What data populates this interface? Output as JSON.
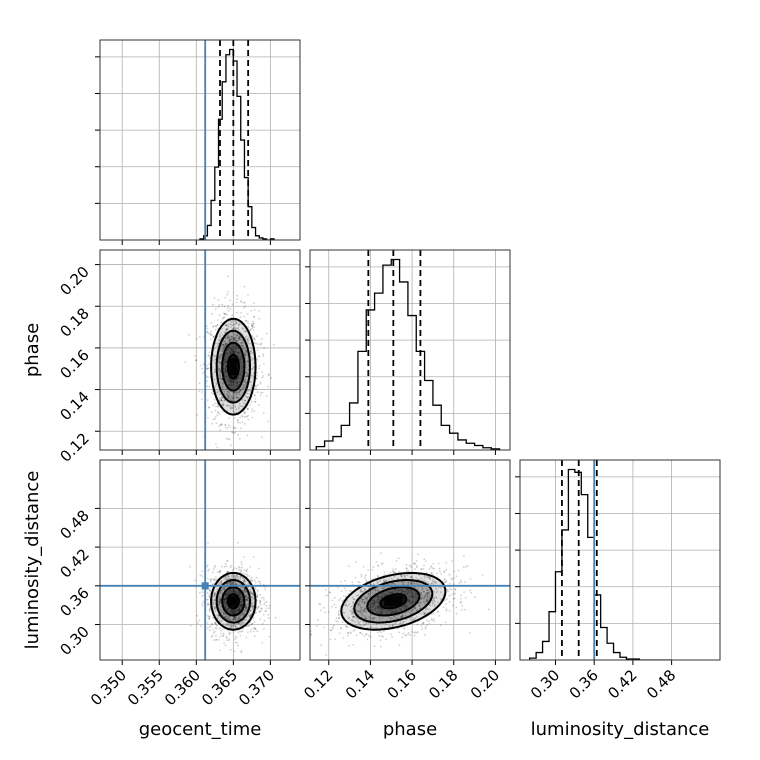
{
  "colors": {
    "truth": "#4682b4",
    "hist": "#000000",
    "grid": "#b0b0b0"
  },
  "chart_data": {
    "type": "corner",
    "parameters": [
      {
        "name": "geocent_time",
        "label": "geocent_time",
        "range": [
          0.347,
          0.374
        ],
        "ticks": [
          0.35,
          0.355,
          0.36,
          0.365,
          0.37
        ],
        "tick_labels": [
          "0.350",
          "0.355",
          "0.360",
          "0.365",
          "0.370"
        ],
        "truth": 0.3612,
        "quantiles": [
          0.3632,
          0.365,
          0.367
        ]
      },
      {
        "name": "phase",
        "label": "phase",
        "range": [
          0.111,
          0.207
        ],
        "ticks": [
          0.12,
          0.14,
          0.16,
          0.18,
          0.2
        ],
        "tick_labels": [
          "0.12",
          "0.14",
          "0.16",
          "0.18",
          "0.20"
        ],
        "truth": null,
        "quantiles": [
          0.139,
          0.151,
          0.164
        ]
      },
      {
        "name": "luminosity_distance",
        "label": "luminosity_distance",
        "range": [
          0.245,
          0.555
        ],
        "ticks": [
          0.3,
          0.36,
          0.42,
          0.48
        ],
        "tick_labels": [
          "0.30",
          "0.36",
          "0.42",
          "0.48"
        ],
        "truth": 0.36,
        "quantiles": [
          0.31,
          0.336,
          0.364
        ]
      }
    ],
    "histograms": [
      {
        "param": "geocent_time",
        "bins": [
          0.3605,
          0.361,
          0.3615,
          0.362,
          0.3625,
          0.363,
          0.3635,
          0.364,
          0.3645,
          0.365,
          0.3655,
          0.366,
          0.3665,
          0.367,
          0.3675,
          0.368,
          0.3685,
          0.369,
          0.3695,
          0.37,
          0.3705
        ],
        "counts": [
          1,
          4,
          14,
          38,
          70,
          116,
          152,
          178,
          183,
          172,
          138,
          96,
          60,
          32,
          12,
          4,
          2,
          1,
          0,
          1
        ]
      },
      {
        "param": "phase",
        "bins": [
          0.114,
          0.118,
          0.122,
          0.126,
          0.13,
          0.134,
          0.138,
          0.142,
          0.146,
          0.15,
          0.154,
          0.158,
          0.162,
          0.166,
          0.17,
          0.174,
          0.178,
          0.182,
          0.186,
          0.19,
          0.194,
          0.198,
          0.202
        ],
        "counts": [
          3,
          8,
          12,
          22,
          42,
          88,
          125,
          140,
          165,
          170,
          150,
          120,
          88,
          62,
          40,
          22,
          15,
          9,
          6,
          4,
          2,
          1
        ]
      },
      {
        "param": "luminosity_distance",
        "bins": [
          0.26,
          0.27,
          0.28,
          0.29,
          0.3,
          0.31,
          0.32,
          0.33,
          0.34,
          0.35,
          0.36,
          0.37,
          0.38,
          0.39,
          0.4,
          0.41,
          0.42,
          0.43,
          0.44,
          0.45,
          0.46,
          0.47,
          0.48
        ],
        "counts": [
          2,
          8,
          20,
          52,
          95,
          140,
          205,
          202,
          178,
          132,
          70,
          35,
          18,
          8,
          3,
          1,
          1,
          0,
          0,
          0,
          0,
          0
        ]
      }
    ],
    "pairs": [
      {
        "x": "geocent_time",
        "y": "phase",
        "center": [
          0.365,
          0.151
        ],
        "sigma": [
          0.0015,
          0.0115
        ],
        "rho": 0.0
      },
      {
        "x": "geocent_time",
        "y": "luminosity_distance",
        "center": [
          0.365,
          0.336
        ],
        "sigma": [
          0.0015,
          0.022
        ],
        "rho": 0.0
      },
      {
        "x": "phase",
        "y": "luminosity_distance",
        "center": [
          0.151,
          0.336
        ],
        "sigma": [
          0.0125,
          0.022
        ],
        "rho": 0.35
      }
    ],
    "contour_levels_sigma": [
      0.5,
      1.0,
      1.5,
      2.0
    ],
    "grid": true
  }
}
